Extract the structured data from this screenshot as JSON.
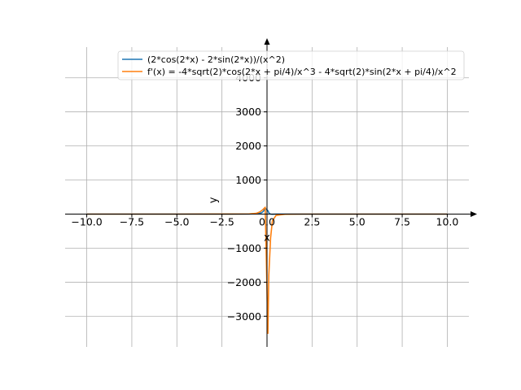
{
  "chart_data": {
    "type": "line",
    "title": "",
    "xlabel": "x",
    "ylabel": "y",
    "xlim": [
      -11.2,
      11.2
    ],
    "ylim": [
      -3900,
      4900
    ],
    "grid": true,
    "legend_position": "top-right",
    "x_ticks": [
      -10,
      -7.5,
      -5,
      -2.5,
      0,
      2.5,
      5,
      7.5,
      10
    ],
    "x_tick_labels": [
      "−10.0",
      "−7.5",
      "−5.0",
      "−2.5",
      "0.0",
      "2.5",
      "5.0",
      "7.5",
      "10.0"
    ],
    "y_ticks": [
      -3000,
      -2000,
      -1000,
      0,
      1000,
      2000,
      3000,
      4000
    ],
    "y_tick_labels": [
      "−3000",
      "−2000",
      "−1000",
      "",
      "1000",
      "2000",
      "3000",
      "4000"
    ],
    "series": [
      {
        "name": "(2*cos(2*x) - 2*sin(2*x))/(x^2)",
        "color": "#1f77b4",
        "x": [
          -10,
          -5,
          -2,
          -1,
          -0.5,
          -0.3,
          -0.2,
          -0.1,
          0.05,
          0.1,
          0.15,
          0.2,
          0.3,
          0.5,
          1,
          2,
          5,
          10
        ],
        "y": [
          0,
          0.1,
          0.5,
          3,
          12,
          40,
          80,
          170,
          100,
          40,
          10,
          0,
          -5,
          -2,
          -2,
          0,
          0,
          0
        ]
      },
      {
        "name": "f'(x) = -4*sqrt(2)*cos(2*x + pi/4)/x^3 - 4*sqrt(2)*sin(2*x + pi/4)/x^2",
        "color": "#ff7f0e",
        "x": [
          -10,
          -5,
          -2,
          -1,
          -0.6,
          -0.4,
          -0.25,
          -0.1,
          0.05,
          0.1,
          0.2,
          0.3,
          0.5,
          1,
          2,
          5,
          10
        ],
        "y": [
          0,
          0,
          1,
          3,
          20,
          60,
          120,
          200,
          -3500,
          -1800,
          -700,
          -200,
          -40,
          -5,
          0,
          0,
          0
        ]
      }
    ]
  }
}
